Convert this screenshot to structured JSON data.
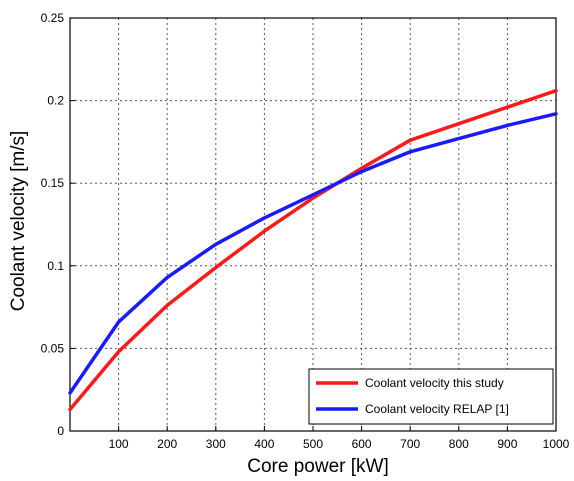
{
  "chart_data": {
    "type": "line",
    "xlabel": "Core power  [kW]",
    "ylabel": "Coolant velocity [m/s]",
    "xlim": [
      0,
      1000
    ],
    "ylim": [
      0,
      0.25
    ],
    "x_ticks": [
      "100",
      "200",
      "300",
      "400",
      "500",
      "600",
      "700",
      "800",
      "900",
      "1000"
    ],
    "y_ticks": [
      "0",
      "0.05",
      "0.1",
      "0.15",
      "0.2",
      "0.25"
    ],
    "grid": true,
    "legend_position": "bottom-right",
    "series": [
      {
        "name": "Coolant velocity this study",
        "color": "#ff1a1a",
        "x": [
          0,
          100,
          200,
          300,
          400,
          500,
          600,
          700,
          800,
          900,
          1000
        ],
        "y": [
          0.013,
          0.048,
          0.076,
          0.099,
          0.121,
          0.141,
          0.159,
          0.176,
          0.186,
          0.196,
          0.206
        ]
      },
      {
        "name": "Coolant velocity RELAP [1]",
        "color": "#1a1aff",
        "x": [
          0,
          100,
          200,
          300,
          400,
          500,
          600,
          700,
          800,
          900,
          1000
        ],
        "y": [
          0.023,
          0.066,
          0.093,
          0.113,
          0.129,
          0.143,
          0.157,
          0.169,
          0.177,
          0.185,
          0.192
        ]
      }
    ]
  }
}
